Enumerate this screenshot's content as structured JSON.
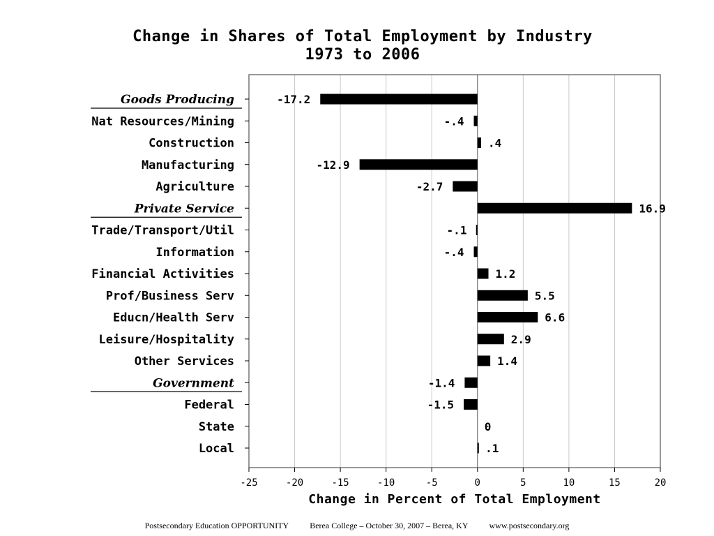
{
  "chart_data": {
    "type": "bar",
    "orientation": "horizontal",
    "title": "Change in Shares of Total Employment by Industry",
    "subtitle": "1973 to 2006",
    "xlabel": "Change in Percent of Total Employment",
    "ylabel": "",
    "xlim": [
      -25,
      20
    ],
    "xticks": [
      -25,
      -20,
      -15,
      -10,
      -5,
      0,
      5,
      10,
      15,
      20
    ],
    "tick_labels": [
      "-25",
      "-20",
      "-15",
      "-10",
      "-5",
      "0",
      "5",
      "10",
      "15",
      "20"
    ],
    "grid": "vertical",
    "categories": [
      "Goods Producing",
      "Nat Resources/Mining",
      "Construction",
      "Manufacturing",
      "Agriculture",
      "Private Service",
      "Trade/Transport/Util",
      "Information",
      "Financial Activities",
      "Prof/Business Serv",
      "Educn/Health Serv",
      "Leisure/Hospitality",
      "Other Services",
      "Government",
      "Federal",
      "State",
      "Local"
    ],
    "group_headers": [
      "Goods Producing",
      "Private Service",
      "Government"
    ],
    "values": [
      -17.2,
      -0.4,
      0.4,
      -12.9,
      -2.7,
      16.9,
      -0.1,
      -0.4,
      1.2,
      5.5,
      6.6,
      2.9,
      1.4,
      -1.4,
      -1.5,
      0,
      0.1
    ],
    "value_labels": [
      "-17.2",
      "-.4",
      ".4",
      "-12.9",
      "-2.7",
      "16.9",
      "-.1",
      "-.4",
      "1.2",
      "5.5",
      "6.6",
      "2.9",
      "1.4",
      "-1.4",
      "-1.5",
      "0",
      ".1"
    ]
  },
  "footer": {
    "left": "Postsecondary Education OPPORTUNITY",
    "middle": "Berea College – October 30, 2007 – Berea, KY",
    "right": "www.postsecondary.org"
  },
  "colors": {
    "bar": "#000000",
    "grid": "#c8c8c8",
    "frame": "#555555"
  }
}
